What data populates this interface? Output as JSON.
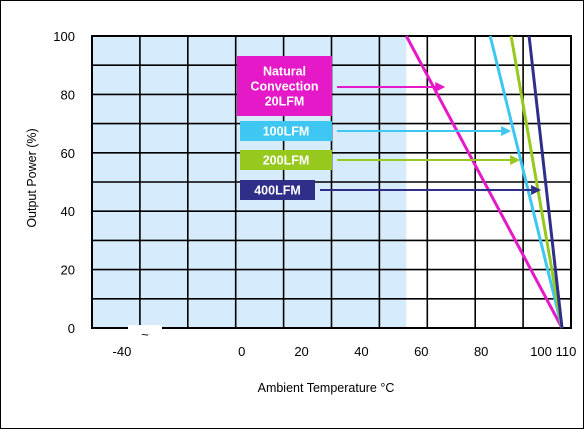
{
  "chart_data": {
    "type": "line",
    "xlabel": "Ambient Temperature °C",
    "ylabel": "Output Power (%)",
    "x_ticks": [
      "-40",
      "0",
      "20",
      "40",
      "60",
      "80",
      "100",
      "110"
    ],
    "y_ticks": [
      "0",
      "20",
      "40",
      "60",
      "80",
      "100"
    ],
    "x_break_mark": "~",
    "xlim": [
      -50,
      110
    ],
    "ylim": [
      0,
      100
    ],
    "grid": true,
    "shaded_region_x": [
      -50,
      55
    ],
    "shaded_color": "#d6ebfb",
    "series": [
      {
        "name": "Natural Convection 20LFM",
        "label_lines": [
          "Natural",
          "Convection",
          "20LFM"
        ],
        "color": "#e619c8",
        "points": [
          [
            55,
            100
          ],
          [
            107,
            0
          ]
        ],
        "legend_arrow_target_x": 68
      },
      {
        "name": "100LFM",
        "label_lines": [
          "100LFM"
        ],
        "color": "#3ec7f2",
        "points": [
          [
            83,
            100
          ],
          [
            107,
            0
          ]
        ],
        "legend_arrow_target_x": 90
      },
      {
        "name": "200LFM",
        "label_lines": [
          "200LFM"
        ],
        "color": "#96c81e",
        "points": [
          [
            90,
            100
          ],
          [
            107,
            0
          ]
        ],
        "legend_arrow_target_x": 93
      },
      {
        "name": "400LFM",
        "label_lines": [
          "400LFM"
        ],
        "color": "#2f2f8a",
        "points": [
          [
            96,
            100
          ],
          [
            107,
            0
          ]
        ],
        "legend_arrow_target_x": 100
      }
    ]
  }
}
